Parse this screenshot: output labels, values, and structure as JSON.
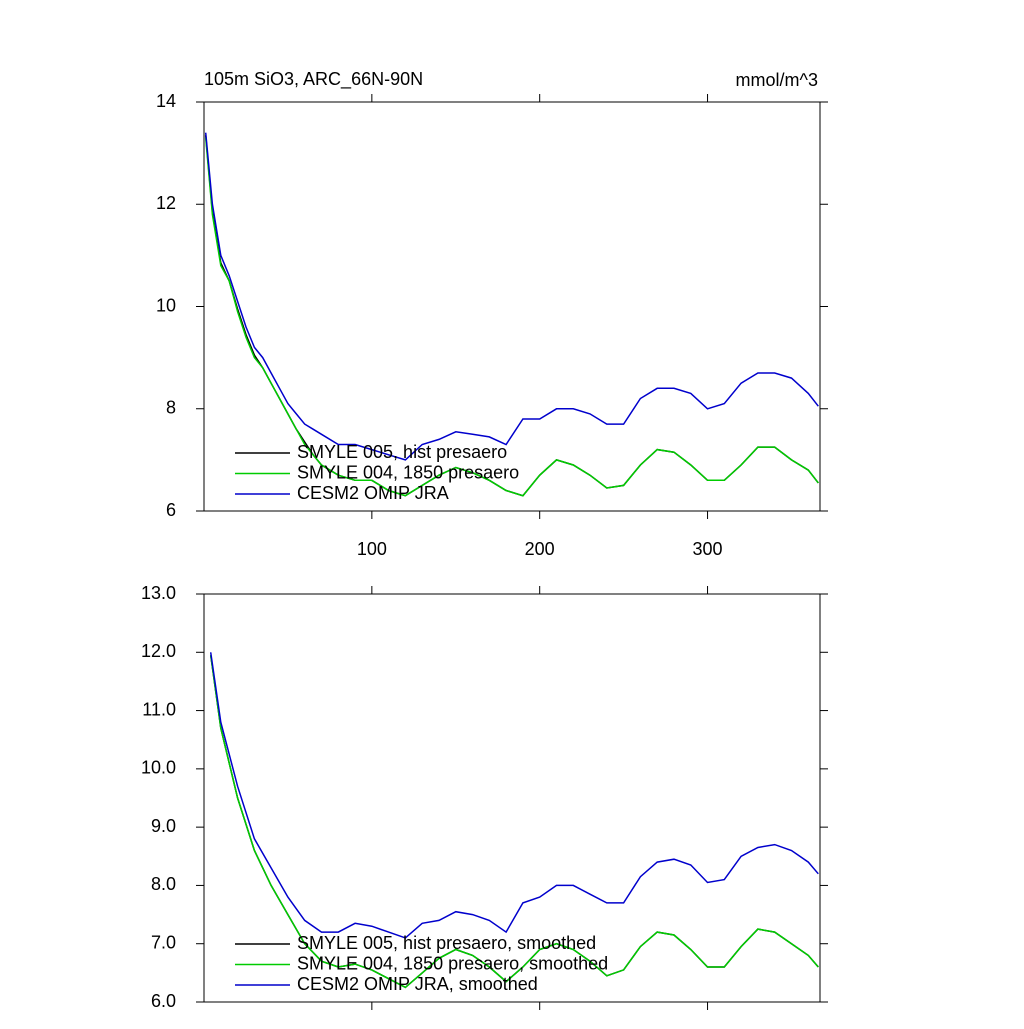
{
  "chart_data": [
    {
      "type": "line",
      "title": "105m SiO3, ARC_66N-90N",
      "units": "mmol/m^3",
      "xlim": [
        0,
        367
      ],
      "xticks": [
        100,
        200,
        300
      ],
      "show_xtick_labels": true,
      "ylim": [
        6,
        14
      ],
      "yticks": [
        6,
        8,
        10,
        12,
        14
      ],
      "x": [
        1,
        5,
        10,
        15,
        20,
        25,
        30,
        35,
        40,
        45,
        50,
        55,
        60,
        65,
        70,
        80,
        90,
        100,
        110,
        120,
        130,
        140,
        150,
        160,
        170,
        180,
        190,
        200,
        210,
        220,
        230,
        240,
        250,
        260,
        270,
        280,
        290,
        300,
        310,
        320,
        330,
        340,
        350,
        360,
        366
      ],
      "legend": "lower-left",
      "series": [
        {
          "name": "SMYLE 005, hist presaero",
          "color": "#000000",
          "values": [
            13.35,
            11.85,
            10.85,
            10.5,
            9.95,
            9.45,
            9.05,
            8.8,
            8.5,
            8.2,
            7.9,
            7.6,
            7.35,
            7.1,
            6.9,
            6.7,
            6.6,
            6.6,
            6.4,
            6.3,
            6.5,
            6.7,
            6.85,
            6.75,
            6.6,
            6.4,
            6.3,
            6.7,
            7.0,
            6.9,
            6.7,
            6.45,
            6.5,
            6.9,
            7.2,
            7.15,
            6.9,
            6.6,
            6.6,
            6.9,
            7.25,
            7.25,
            7.0,
            6.8,
            6.55
          ]
        },
        {
          "name": "SMYLE 004, 1850 presaero",
          "color": "#00cc00",
          "values": [
            13.3,
            11.8,
            10.8,
            10.5,
            9.9,
            9.4,
            9.0,
            8.8,
            8.5,
            8.2,
            7.9,
            7.6,
            7.3,
            7.1,
            6.9,
            6.7,
            6.6,
            6.6,
            6.4,
            6.3,
            6.5,
            6.7,
            6.85,
            6.75,
            6.6,
            6.4,
            6.3,
            6.7,
            7.0,
            6.9,
            6.7,
            6.45,
            6.5,
            6.9,
            7.2,
            7.15,
            6.9,
            6.6,
            6.6,
            6.9,
            7.25,
            7.25,
            7.0,
            6.8,
            6.55
          ]
        },
        {
          "name": "CESM2 OMIP JRA",
          "color": "#0000cc",
          "values": [
            13.4,
            12.0,
            11.0,
            10.6,
            10.1,
            9.6,
            9.2,
            9.0,
            8.7,
            8.4,
            8.1,
            7.9,
            7.7,
            7.6,
            7.5,
            7.3,
            7.3,
            7.2,
            7.1,
            7.0,
            7.3,
            7.4,
            7.55,
            7.5,
            7.45,
            7.3,
            7.8,
            7.8,
            8.0,
            8.0,
            7.9,
            7.7,
            7.7,
            8.2,
            8.4,
            8.4,
            8.3,
            8.0,
            8.1,
            8.5,
            8.7,
            8.7,
            8.6,
            8.3,
            8.05
          ]
        }
      ]
    },
    {
      "type": "line",
      "xlim": [
        0,
        367
      ],
      "xticks": [
        100,
        200,
        300
      ],
      "show_xtick_labels": false,
      "ylim": [
        6,
        13
      ],
      "yticks": [
        {
          "value": 6,
          "label": "6.0"
        },
        {
          "value": 7,
          "label": "7.0"
        },
        {
          "value": 8,
          "label": "8.0"
        },
        {
          "value": 9,
          "label": "9.0"
        },
        {
          "value": 10,
          "label": "10.0"
        },
        {
          "value": 11,
          "label": "11.0"
        },
        {
          "value": 12,
          "label": "12.0"
        },
        {
          "value": 13,
          "label": "13.0"
        }
      ],
      "x": [
        4,
        10,
        20,
        30,
        40,
        50,
        60,
        70,
        80,
        90,
        100,
        110,
        120,
        130,
        140,
        150,
        160,
        170,
        180,
        190,
        200,
        210,
        220,
        230,
        240,
        250,
        260,
        270,
        280,
        290,
        300,
        310,
        320,
        330,
        340,
        350,
        360,
        366
      ],
      "legend": "lower-left",
      "series": [
        {
          "name": "SMYLE 005, hist presaero, smoothed",
          "color": "#000000",
          "values": [
            11.95,
            10.7,
            9.5,
            8.6,
            8.0,
            7.5,
            7.0,
            6.7,
            6.6,
            6.65,
            6.55,
            6.4,
            6.25,
            6.5,
            6.75,
            6.9,
            6.8,
            6.6,
            6.35,
            6.6,
            6.9,
            7.0,
            6.9,
            6.7,
            6.45,
            6.55,
            6.95,
            7.2,
            7.15,
            6.9,
            6.6,
            6.6,
            6.95,
            7.25,
            7.2,
            7.0,
            6.8,
            6.6
          ]
        },
        {
          "name": "SMYLE 004, 1850 presaero, smoothed",
          "color": "#00cc00",
          "values": [
            11.95,
            10.7,
            9.5,
            8.6,
            8.0,
            7.5,
            7.0,
            6.7,
            6.6,
            6.65,
            6.55,
            6.4,
            6.25,
            6.5,
            6.75,
            6.9,
            6.8,
            6.6,
            6.35,
            6.6,
            6.9,
            7.0,
            6.9,
            6.7,
            6.45,
            6.55,
            6.95,
            7.2,
            7.15,
            6.9,
            6.6,
            6.6,
            6.95,
            7.25,
            7.2,
            7.0,
            6.8,
            6.6
          ]
        },
        {
          "name": "CESM2 OMIP JRA, smoothed",
          "color": "#0000cc",
          "values": [
            12.0,
            10.8,
            9.7,
            8.8,
            8.3,
            7.8,
            7.4,
            7.2,
            7.2,
            7.35,
            7.3,
            7.2,
            7.1,
            7.35,
            7.4,
            7.55,
            7.5,
            7.4,
            7.2,
            7.7,
            7.8,
            8.0,
            8.0,
            7.85,
            7.7,
            7.7,
            8.15,
            8.4,
            8.45,
            8.35,
            8.05,
            8.1,
            8.5,
            8.65,
            8.7,
            8.6,
            8.4,
            8.2
          ]
        }
      ]
    }
  ]
}
